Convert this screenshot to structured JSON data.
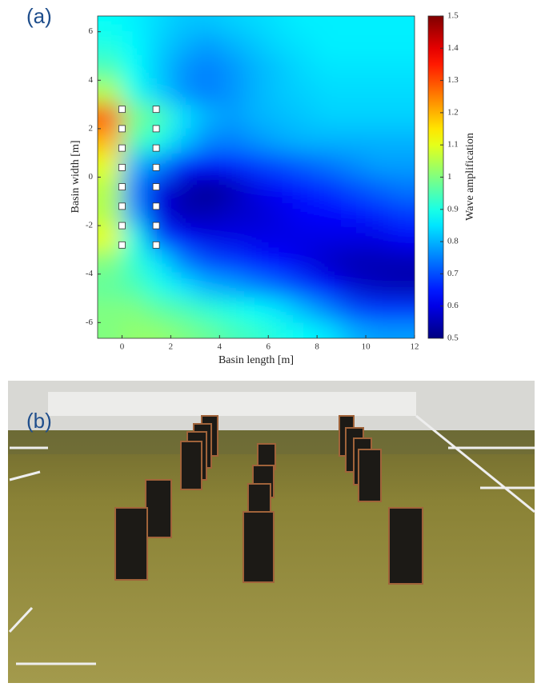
{
  "chart_data": {
    "type": "heatmap",
    "panel_label": "(a)",
    "xlabel": "Basin length [m]",
    "ylabel": "Basin width [m]",
    "colorbar_label": "Wave amplification",
    "colormap": "jet",
    "xlim": [
      -1,
      12
    ],
    "ylim": [
      -6.65,
      6.65
    ],
    "xticks": [
      0,
      2,
      4,
      6,
      8,
      10,
      12
    ],
    "yticks": [
      -6,
      -4,
      -2,
      0,
      2,
      4,
      6
    ],
    "clim": [
      0.5,
      1.5
    ],
    "cticks": [
      0.5,
      0.6,
      0.7,
      0.8,
      0.9,
      1,
      1.1,
      1.2,
      1.3,
      1.4,
      1.5
    ],
    "x": [
      -0.5,
      0.5,
      1.5,
      2.5,
      3.5,
      4.5,
      5.5,
      6.5,
      7.5,
      8.5,
      9.5,
      10.5,
      11.5
    ],
    "y": [
      6.5,
      5.5,
      4.5,
      3.5,
      2.5,
      1.5,
      0.5,
      -0.5,
      -1.5,
      -2.5,
      -3.5,
      -4.5,
      -5.5,
      -6.5
    ],
    "z": [
      [
        0.88,
        0.86,
        0.84,
        0.82,
        0.82,
        0.83,
        0.84,
        0.85,
        0.86,
        0.86,
        0.86,
        0.86,
        0.86
      ],
      [
        0.9,
        0.87,
        0.83,
        0.8,
        0.78,
        0.8,
        0.82,
        0.84,
        0.85,
        0.86,
        0.86,
        0.86,
        0.86
      ],
      [
        0.95,
        0.88,
        0.82,
        0.77,
        0.75,
        0.77,
        0.8,
        0.82,
        0.84,
        0.85,
        0.85,
        0.85,
        0.85
      ],
      [
        1.05,
        0.9,
        0.83,
        0.77,
        0.75,
        0.77,
        0.8,
        0.82,
        0.83,
        0.84,
        0.84,
        0.84,
        0.84
      ],
      [
        1.3,
        1.0,
        0.95,
        0.85,
        0.8,
        0.78,
        0.8,
        0.81,
        0.82,
        0.83,
        0.83,
        0.83,
        0.83
      ],
      [
        1.2,
        0.95,
        0.9,
        0.82,
        0.76,
        0.75,
        0.77,
        0.79,
        0.8,
        0.8,
        0.8,
        0.8,
        0.8
      ],
      [
        1.1,
        0.8,
        0.75,
        0.65,
        0.62,
        0.65,
        0.68,
        0.7,
        0.72,
        0.74,
        0.76,
        0.78,
        0.78
      ],
      [
        1.05,
        0.75,
        0.6,
        0.55,
        0.52,
        0.55,
        0.6,
        0.62,
        0.65,
        0.67,
        0.7,
        0.72,
        0.74
      ],
      [
        1.05,
        0.78,
        0.6,
        0.55,
        0.55,
        0.57,
        0.58,
        0.6,
        0.62,
        0.63,
        0.64,
        0.66,
        0.68
      ],
      [
        1.1,
        0.9,
        0.7,
        0.62,
        0.6,
        0.6,
        0.6,
        0.6,
        0.6,
        0.6,
        0.6,
        0.6,
        0.62
      ],
      [
        1.0,
        0.92,
        0.85,
        0.75,
        0.7,
        0.68,
        0.65,
        0.63,
        0.6,
        0.57,
        0.55,
        0.55,
        0.55
      ],
      [
        0.97,
        0.95,
        0.9,
        0.85,
        0.8,
        0.78,
        0.75,
        0.72,
        0.68,
        0.62,
        0.58,
        0.56,
        0.55
      ],
      [
        1.0,
        1.0,
        0.97,
        0.95,
        0.92,
        0.9,
        0.88,
        0.85,
        0.8,
        0.75,
        0.7,
        0.68,
        0.68
      ],
      [
        1.0,
        1.02,
        1.02,
        1.0,
        0.98,
        0.95,
        0.93,
        0.9,
        0.88,
        0.85,
        0.8,
        0.78,
        0.78
      ]
    ],
    "devices": {
      "x": [
        0,
        0,
        0,
        0,
        0,
        0,
        0,
        0,
        1.4,
        1.4,
        1.4,
        1.4,
        1.4,
        1.4,
        1.4,
        1.4
      ],
      "y": [
        2.8,
        2,
        1.2,
        0.4,
        -0.4,
        -1.2,
        -2,
        -2.8,
        2.8,
        2,
        1.2,
        0.4,
        -0.4,
        -1.2,
        -2,
        -2.8
      ]
    }
  },
  "photo": {
    "label": "(b)"
  }
}
